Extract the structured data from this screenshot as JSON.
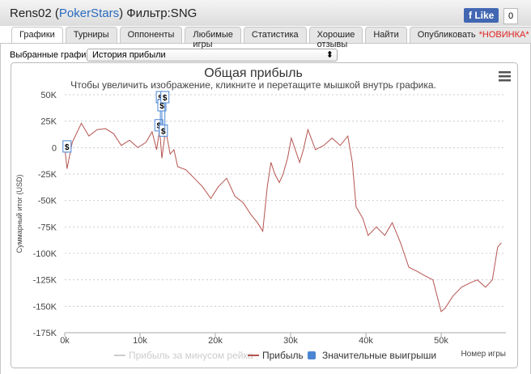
{
  "header": {
    "user": "Rens02",
    "paren_open": "(",
    "site": "PokerStars",
    "paren_close": ")",
    "filter": "Фильтр:SNG",
    "like": "Like",
    "like_count": "0"
  },
  "tabs": [
    "Графики",
    "Турниры",
    "Оппоненты",
    "Любимые игры",
    "Статистика",
    "Хорошие отзывы",
    "Найти",
    "Опубликовать"
  ],
  "new_badge": "*НОВИНКА*",
  "selector": {
    "label": "Выбранные графики:",
    "value": "История прибыли"
  },
  "chart_data": {
    "type": "line",
    "title": "Общая прибыль",
    "subtitle": "Чтобы увеличить изображение, кликните и перетащите мышкой внутрь графика.",
    "y_label": "Суммарный итог (USD)",
    "x_label": "Номер игры",
    "grid": true,
    "xlim": [
      0,
      58600
    ],
    "ylim": [
      -175000,
      50000
    ],
    "xticks": [
      {
        "value": 0,
        "label": "0k"
      },
      {
        "value": 10000,
        "label": "10k"
      },
      {
        "value": 20000,
        "label": "20k"
      },
      {
        "value": 30000,
        "label": "30k"
      },
      {
        "value": 40000,
        "label": "40k"
      },
      {
        "value": 50000,
        "label": "50k"
      }
    ],
    "yticks": [
      {
        "value": 50000,
        "label": "50K"
      },
      {
        "value": 25000,
        "label": "25K"
      },
      {
        "value": 0,
        "label": "0"
      },
      {
        "value": -25000,
        "label": "-25K"
      },
      {
        "value": -50000,
        "label": "-50K"
      },
      {
        "value": -75000,
        "label": "-75K"
      },
      {
        "value": -100000,
        "label": "-100K"
      },
      {
        "value": -125000,
        "label": "-125K"
      },
      {
        "value": -150000,
        "label": "-150K"
      },
      {
        "value": -175000,
        "label": "-175K"
      }
    ],
    "series": [
      {
        "name": "Прибыль за минусом рейка",
        "color": "#cccccc",
        "visible": false
      },
      {
        "name": "Прибыль",
        "color": "#b5534f",
        "x": [
          0,
          300,
          1000,
          2200,
          3200,
          4300,
          5400,
          6500,
          7500,
          8600,
          9700,
          10800,
          11600,
          12200,
          12600,
          12900,
          13400,
          14000,
          14500,
          15000,
          16100,
          17200,
          18300,
          19400,
          20400,
          21500,
          22600,
          23700,
          24700,
          25600,
          26300,
          26900,
          27400,
          27900,
          28500,
          29000,
          29600,
          30100,
          31200,
          31700,
          32300,
          33300,
          34400,
          35500,
          36600,
          37600,
          38200,
          38700,
          39600,
          40300,
          41400,
          42500,
          43500,
          44600,
          45700,
          46800,
          47800,
          48900,
          50000,
          50500,
          51600,
          52700,
          53800,
          54800,
          55900,
          56800,
          57500,
          58000
        ],
        "values": [
          0,
          -20000,
          5000,
          23000,
          11000,
          17000,
          18000,
          13000,
          2000,
          7000,
          0,
          5000,
          15000,
          -2000,
          17000,
          -10000,
          17000,
          -6000,
          -2000,
          -18000,
          -21000,
          -29000,
          -37000,
          -48000,
          -37000,
          -29000,
          -46000,
          -52000,
          -63000,
          -71000,
          -79000,
          -37000,
          -14000,
          -25000,
          -33000,
          -25000,
          -10000,
          9000,
          -14000,
          -2000,
          17000,
          -2000,
          2000,
          9000,
          2000,
          11000,
          -14000,
          -56000,
          -67000,
          -83000,
          -75000,
          -83000,
          -71000,
          -90000,
          -113000,
          -117000,
          -121000,
          -125000,
          -155000,
          -152000,
          -140000,
          -132000,
          -128000,
          -125000,
          -132000,
          -125000,
          -94000,
          -90000
        ]
      },
      {
        "name": "Значительные выигрыши",
        "color": "#4a86d4",
        "marker": "flag",
        "flag_label": "$",
        "x": [
          300,
          12500,
          12700,
          12900,
          13100,
          13300
        ],
        "values": [
          -5000,
          15000,
          12000,
          17000,
          10000,
          16000
        ]
      }
    ]
  }
}
